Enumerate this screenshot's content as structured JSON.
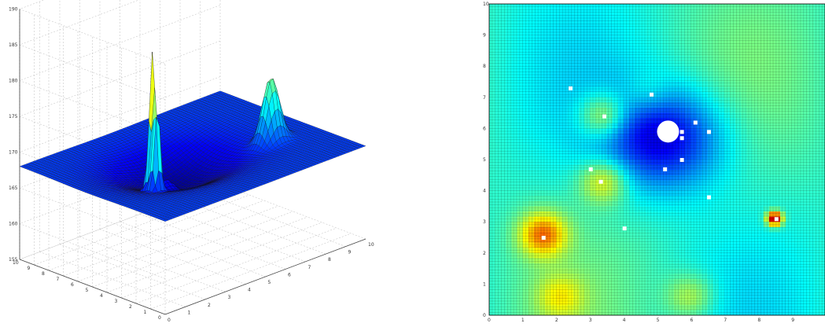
{
  "chart_data": [
    {
      "type": "surface",
      "zlim": [
        155,
        190
      ],
      "xlim": [
        0,
        10
      ],
      "ylim": [
        0,
        10
      ],
      "z_ticks": [
        "155",
        "160",
        "165",
        "170",
        "175",
        "180",
        "185",
        "190"
      ],
      "x_ticks": [
        "0",
        "1",
        "2",
        "3",
        "4",
        "5",
        "6",
        "7",
        "8",
        "9",
        "10"
      ],
      "y_ticks": [
        "0",
        "1",
        "2",
        "3",
        "4",
        "5",
        "6",
        "7",
        "8",
        "9",
        "10"
      ],
      "grid": true,
      "colormap": "jet",
      "base_level": 168,
      "peaks": [
        {
          "x": 2.5,
          "y": 4.3,
          "height": 188
        },
        {
          "x": 2.4,
          "y": 3.9,
          "height": 181
        },
        {
          "x": 8.1,
          "y": 3.9,
          "height": 177
        },
        {
          "x": 3.6,
          "y": 4.9,
          "height": 170
        }
      ]
    },
    {
      "type": "heatmap",
      "xlim": [
        0,
        10
      ],
      "ylim": [
        0,
        10
      ],
      "x_ticks": [
        "0",
        "1",
        "2",
        "3",
        "4",
        "5",
        "6",
        "7",
        "8",
        "9"
      ],
      "y_ticks": [
        "0",
        "1",
        "2",
        "3",
        "4",
        "5",
        "6",
        "7",
        "8",
        "9",
        "10"
      ],
      "grid": true,
      "colormap": "jet",
      "hotspots": [
        {
          "x": 1.6,
          "y": 2.6,
          "level": 0.72
        },
        {
          "x": 2.1,
          "y": 0.6,
          "level": 0.55
        },
        {
          "x": 6.0,
          "y": 0.6,
          "level": 0.55
        },
        {
          "x": 3.4,
          "y": 6.4,
          "level": 0.62
        },
        {
          "x": 3.4,
          "y": 4.3,
          "level": 0.62
        },
        {
          "x": 4.7,
          "y": 7.1,
          "level": 0.48
        },
        {
          "x": 8.5,
          "y": 3.1,
          "level": 1.0
        }
      ],
      "basin": {
        "x": 5.2,
        "y": 5.7,
        "level": 0.1
      },
      "missing_points": [
        {
          "x": 5.3,
          "y": 5.9
        },
        {
          "x": 3.4,
          "y": 6.4
        },
        {
          "x": 3.3,
          "y": 4.3
        },
        {
          "x": 1.6,
          "y": 2.5
        },
        {
          "x": 8.5,
          "y": 3.1
        },
        {
          "x": 6.1,
          "y": 6.2
        },
        {
          "x": 6.5,
          "y": 5.9
        },
        {
          "x": 5.7,
          "y": 5.7
        },
        {
          "x": 5.7,
          "y": 5.9
        },
        {
          "x": 5.7,
          "y": 5.0
        },
        {
          "x": 5.2,
          "y": 4.7
        },
        {
          "x": 2.4,
          "y": 7.3
        },
        {
          "x": 4.8,
          "y": 7.1
        },
        {
          "x": 3.0,
          "y": 4.7
        },
        {
          "x": 6.5,
          "y": 3.8
        },
        {
          "x": 4.0,
          "y": 2.8
        }
      ]
    }
  ]
}
